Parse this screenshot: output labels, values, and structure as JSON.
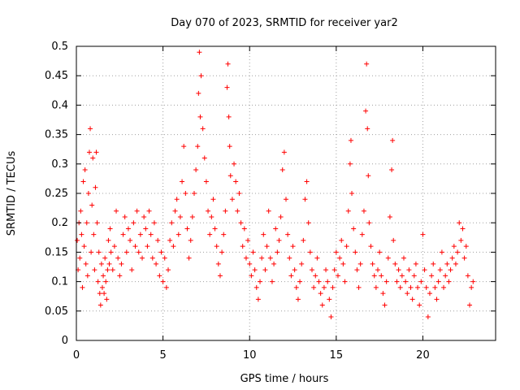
{
  "chart_data": {
    "type": "scatter",
    "title": "Day 070 of 2023, SRMTID for receiver yar2",
    "xlabel": "GPS time / hours",
    "ylabel": "SRMTID / TECUs",
    "xlim": [
      0,
      24.2
    ],
    "ylim": [
      0,
      0.5
    ],
    "x_ticks": [
      0,
      5,
      10,
      15,
      20
    ],
    "x_tick_labels": [
      "0",
      "5",
      "10",
      "15",
      "20"
    ],
    "y_ticks": [
      0,
      0.05,
      0.1,
      0.15,
      0.2,
      0.25,
      0.3,
      0.35,
      0.4,
      0.45,
      0.5
    ],
    "y_tick_labels": [
      "0",
      "0.05",
      "0.1",
      "0.15",
      "0.2",
      "0.25",
      "0.3",
      "0.35",
      "0.4",
      "0.45",
      "0.5"
    ],
    "grid": true,
    "marker": "+",
    "series": [
      {
        "name": "SRMTID",
        "color": "#ff0000",
        "points": [
          [
            0.05,
            0.17
          ],
          [
            0.1,
            0.12
          ],
          [
            0.15,
            0.2
          ],
          [
            0.2,
            0.14
          ],
          [
            0.25,
            0.22
          ],
          [
            0.3,
            0.18
          ],
          [
            0.35,
            0.09
          ],
          [
            0.4,
            0.27
          ],
          [
            0.45,
            0.16
          ],
          [
            0.5,
            0.29
          ],
          [
            0.55,
            0.13
          ],
          [
            0.6,
            0.2
          ],
          [
            0.65,
            0.11
          ],
          [
            0.7,
            0.25
          ],
          [
            0.75,
            0.32
          ],
          [
            0.8,
            0.36
          ],
          [
            0.85,
            0.15
          ],
          [
            0.9,
            0.23
          ],
          [
            0.95,
            0.31
          ],
          [
            1.0,
            0.18
          ],
          [
            1.05,
            0.12
          ],
          [
            1.1,
            0.26
          ],
          [
            1.15,
            0.32
          ],
          [
            1.2,
            0.2
          ],
          [
            1.25,
            0.1
          ],
          [
            1.3,
            0.15
          ],
          [
            1.35,
            0.08
          ],
          [
            1.4,
            0.06
          ],
          [
            1.45,
            0.13
          ],
          [
            1.5,
            0.09
          ],
          [
            1.55,
            0.11
          ],
          [
            1.6,
            0.08
          ],
          [
            1.65,
            0.14
          ],
          [
            1.7,
            0.1
          ],
          [
            1.75,
            0.07
          ],
          [
            1.8,
            0.12
          ],
          [
            1.85,
            0.17
          ],
          [
            1.9,
            0.13
          ],
          [
            1.95,
            0.19
          ],
          [
            2.0,
            0.15
          ],
          [
            2.1,
            0.12
          ],
          [
            2.2,
            0.16
          ],
          [
            2.3,
            0.22
          ],
          [
            2.4,
            0.14
          ],
          [
            2.5,
            0.11
          ],
          [
            2.6,
            0.13
          ],
          [
            2.7,
            0.18
          ],
          [
            2.8,
            0.21
          ],
          [
            2.9,
            0.15
          ],
          [
            3.0,
            0.19
          ],
          [
            3.1,
            0.17
          ],
          [
            3.2,
            0.12
          ],
          [
            3.3,
            0.2
          ],
          [
            3.4,
            0.16
          ],
          [
            3.5,
            0.22
          ],
          [
            3.6,
            0.15
          ],
          [
            3.7,
            0.18
          ],
          [
            3.8,
            0.14
          ],
          [
            3.9,
            0.21
          ],
          [
            4.0,
            0.19
          ],
          [
            4.1,
            0.16
          ],
          [
            4.2,
            0.22
          ],
          [
            4.3,
            0.18
          ],
          [
            4.4,
            0.14
          ],
          [
            4.5,
            0.2
          ],
          [
            4.6,
            0.13
          ],
          [
            4.7,
            0.17
          ],
          [
            4.8,
            0.11
          ],
          [
            4.9,
            0.15
          ],
          [
            5.0,
            0.1
          ],
          [
            5.1,
            0.14
          ],
          [
            5.2,
            0.09
          ],
          [
            5.3,
            0.12
          ],
          [
            5.4,
            0.17
          ],
          [
            5.5,
            0.2
          ],
          [
            5.6,
            0.16
          ],
          [
            5.7,
            0.22
          ],
          [
            5.8,
            0.24
          ],
          [
            5.9,
            0.18
          ],
          [
            6.0,
            0.21
          ],
          [
            6.1,
            0.27
          ],
          [
            6.2,
            0.33
          ],
          [
            6.3,
            0.25
          ],
          [
            6.4,
            0.19
          ],
          [
            6.5,
            0.14
          ],
          [
            6.6,
            0.17
          ],
          [
            6.7,
            0.21
          ],
          [
            6.8,
            0.25
          ],
          [
            6.9,
            0.29
          ],
          [
            7.0,
            0.33
          ],
          [
            7.05,
            0.42
          ],
          [
            7.1,
            0.49
          ],
          [
            7.15,
            0.38
          ],
          [
            7.2,
            0.45
          ],
          [
            7.3,
            0.36
          ],
          [
            7.4,
            0.31
          ],
          [
            7.5,
            0.27
          ],
          [
            7.6,
            0.22
          ],
          [
            7.7,
            0.18
          ],
          [
            7.8,
            0.21
          ],
          [
            7.9,
            0.24
          ],
          [
            8.0,
            0.19
          ],
          [
            8.1,
            0.16
          ],
          [
            8.2,
            0.13
          ],
          [
            8.3,
            0.11
          ],
          [
            8.4,
            0.15
          ],
          [
            8.5,
            0.18
          ],
          [
            8.6,
            0.22
          ],
          [
            8.7,
            0.43
          ],
          [
            8.75,
            0.47
          ],
          [
            8.8,
            0.38
          ],
          [
            8.85,
            0.33
          ],
          [
            8.9,
            0.28
          ],
          [
            9.0,
            0.24
          ],
          [
            9.1,
            0.3
          ],
          [
            9.2,
            0.27
          ],
          [
            9.3,
            0.22
          ],
          [
            9.4,
            0.25
          ],
          [
            9.5,
            0.2
          ],
          [
            9.6,
            0.16
          ],
          [
            9.7,
            0.19
          ],
          [
            9.8,
            0.14
          ],
          [
            9.9,
            0.17
          ],
          [
            10.0,
            0.13
          ],
          [
            10.1,
            0.11
          ],
          [
            10.2,
            0.15
          ],
          [
            10.3,
            0.12
          ],
          [
            10.4,
            0.09
          ],
          [
            10.5,
            0.07
          ],
          [
            10.6,
            0.1
          ],
          [
            10.7,
            0.14
          ],
          [
            10.8,
            0.18
          ],
          [
            10.9,
            0.12
          ],
          [
            11.0,
            0.16
          ],
          [
            11.1,
            0.22
          ],
          [
            11.2,
            0.14
          ],
          [
            11.3,
            0.1
          ],
          [
            11.4,
            0.13
          ],
          [
            11.5,
            0.19
          ],
          [
            11.6,
            0.15
          ],
          [
            11.7,
            0.17
          ],
          [
            11.8,
            0.21
          ],
          [
            11.9,
            0.29
          ],
          [
            12.0,
            0.32
          ],
          [
            12.1,
            0.24
          ],
          [
            12.2,
            0.18
          ],
          [
            12.3,
            0.14
          ],
          [
            12.4,
            0.11
          ],
          [
            12.5,
            0.16
          ],
          [
            12.6,
            0.12
          ],
          [
            12.7,
            0.09
          ],
          [
            12.8,
            0.07
          ],
          [
            12.9,
            0.1
          ],
          [
            13.0,
            0.13
          ],
          [
            13.1,
            0.17
          ],
          [
            13.2,
            0.24
          ],
          [
            13.3,
            0.27
          ],
          [
            13.4,
            0.2
          ],
          [
            13.5,
            0.15
          ],
          [
            13.6,
            0.12
          ],
          [
            13.7,
            0.09
          ],
          [
            13.8,
            0.11
          ],
          [
            13.9,
            0.14
          ],
          [
            14.0,
            0.1
          ],
          [
            14.1,
            0.08
          ],
          [
            14.2,
            0.06
          ],
          [
            14.3,
            0.09
          ],
          [
            14.4,
            0.12
          ],
          [
            14.5,
            0.1
          ],
          [
            14.6,
            0.07
          ],
          [
            14.7,
            0.04
          ],
          [
            14.8,
            0.09
          ],
          [
            14.9,
            0.12
          ],
          [
            15.0,
            0.15
          ],
          [
            15.1,
            0.11
          ],
          [
            15.2,
            0.14
          ],
          [
            15.3,
            0.17
          ],
          [
            15.4,
            0.13
          ],
          [
            15.5,
            0.1
          ],
          [
            15.6,
            0.16
          ],
          [
            15.7,
            0.22
          ],
          [
            15.8,
            0.3
          ],
          [
            15.85,
            0.34
          ],
          [
            15.9,
            0.25
          ],
          [
            16.0,
            0.19
          ],
          [
            16.1,
            0.15
          ],
          [
            16.2,
            0.12
          ],
          [
            16.3,
            0.09
          ],
          [
            16.4,
            0.13
          ],
          [
            16.5,
            0.18
          ],
          [
            16.6,
            0.22
          ],
          [
            16.7,
            0.39
          ],
          [
            16.75,
            0.47
          ],
          [
            16.8,
            0.36
          ],
          [
            16.85,
            0.28
          ],
          [
            16.9,
            0.2
          ],
          [
            17.0,
            0.16
          ],
          [
            17.1,
            0.13
          ],
          [
            17.2,
            0.11
          ],
          [
            17.3,
            0.09
          ],
          [
            17.4,
            0.12
          ],
          [
            17.5,
            0.15
          ],
          [
            17.6,
            0.11
          ],
          [
            17.7,
            0.08
          ],
          [
            17.8,
            0.06
          ],
          [
            17.9,
            0.1
          ],
          [
            18.0,
            0.14
          ],
          [
            18.1,
            0.21
          ],
          [
            18.2,
            0.29
          ],
          [
            18.25,
            0.34
          ],
          [
            18.3,
            0.17
          ],
          [
            18.4,
            0.13
          ],
          [
            18.5,
            0.1
          ],
          [
            18.6,
            0.12
          ],
          [
            18.7,
            0.09
          ],
          [
            18.8,
            0.11
          ],
          [
            18.9,
            0.14
          ],
          [
            19.0,
            0.1
          ],
          [
            19.1,
            0.08
          ],
          [
            19.2,
            0.12
          ],
          [
            19.3,
            0.09
          ],
          [
            19.4,
            0.07
          ],
          [
            19.5,
            0.11
          ],
          [
            19.6,
            0.13
          ],
          [
            19.7,
            0.09
          ],
          [
            19.8,
            0.06
          ],
          [
            19.9,
            0.1
          ],
          [
            20.0,
            0.18
          ],
          [
            20.1,
            0.12
          ],
          [
            20.2,
            0.09
          ],
          [
            20.3,
            0.04
          ],
          [
            20.4,
            0.08
          ],
          [
            20.5,
            0.11
          ],
          [
            20.6,
            0.13
          ],
          [
            20.7,
            0.09
          ],
          [
            20.8,
            0.07
          ],
          [
            20.9,
            0.1
          ],
          [
            21.0,
            0.12
          ],
          [
            21.1,
            0.15
          ],
          [
            21.2,
            0.09
          ],
          [
            21.3,
            0.11
          ],
          [
            21.4,
            0.13
          ],
          [
            21.5,
            0.1
          ],
          [
            21.6,
            0.12
          ],
          [
            21.7,
            0.14
          ],
          [
            21.8,
            0.16
          ],
          [
            21.9,
            0.13
          ],
          [
            22.0,
            0.15
          ],
          [
            22.1,
            0.2
          ],
          [
            22.2,
            0.17
          ],
          [
            22.3,
            0.19
          ],
          [
            22.4,
            0.14
          ],
          [
            22.5,
            0.16
          ],
          [
            22.6,
            0.11
          ],
          [
            22.7,
            0.06
          ],
          [
            22.8,
            0.09
          ],
          [
            22.9,
            0.1
          ]
        ]
      }
    ]
  }
}
